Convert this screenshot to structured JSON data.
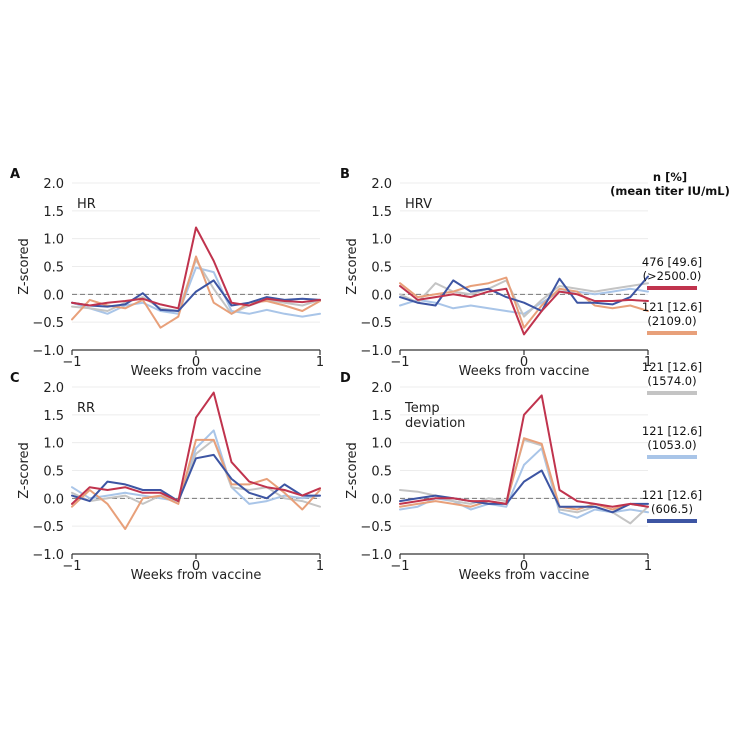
{
  "chart_data": [
    {
      "type": "line",
      "panel_letter": "A",
      "annotation": "HR",
      "xlabel": "Weeks from vaccine",
      "ylabel": "Z-scored",
      "xlim": [
        -1,
        1
      ],
      "ylim": [
        -1.0,
        2.0
      ],
      "xticks": [
        "−1",
        "0",
        "1"
      ],
      "yticks": [
        "2.0",
        "1.5",
        "1.0",
        "0.5",
        "0.0",
        "−0.5",
        "−1.0"
      ],
      "reference_line_y": 0,
      "x": [
        -1,
        -0.857,
        -0.714,
        -0.571,
        -0.429,
        -0.286,
        -0.143,
        0,
        0.143,
        0.286,
        0.429,
        0.571,
        0.714,
        0.857,
        1
      ],
      "series": [
        {
          "color": "#c0334d",
          "values": [
            -0.15,
            -0.2,
            -0.15,
            -0.12,
            -0.08,
            -0.18,
            -0.25,
            1.2,
            0.6,
            -0.15,
            -0.2,
            -0.08,
            -0.12,
            -0.14,
            -0.1
          ]
        },
        {
          "color": "#e8a07a",
          "values": [
            -0.45,
            -0.1,
            -0.2,
            -0.25,
            -0.1,
            -0.6,
            -0.4,
            0.68,
            -0.15,
            -0.35,
            -0.15,
            -0.12,
            -0.2,
            -0.3,
            -0.12
          ]
        },
        {
          "color": "#c4c4c4",
          "values": [
            -0.22,
            -0.25,
            -0.3,
            -0.15,
            -0.05,
            -0.25,
            -0.3,
            0.62,
            0.1,
            -0.35,
            -0.2,
            -0.1,
            -0.15,
            -0.2,
            -0.1
          ]
        },
        {
          "color": "#a9c5e8",
          "values": [
            -0.15,
            -0.25,
            -0.35,
            -0.2,
            -0.15,
            -0.3,
            -0.35,
            0.48,
            0.4,
            -0.3,
            -0.35,
            -0.28,
            -0.35,
            -0.4,
            -0.35
          ]
        },
        {
          "color": "#3d55a3",
          "values": [
            -0.15,
            -0.2,
            -0.22,
            -0.18,
            0.02,
            -0.28,
            -0.3,
            0.05,
            0.25,
            -0.2,
            -0.15,
            -0.05,
            -0.1,
            -0.08,
            -0.1
          ]
        }
      ]
    },
    {
      "type": "line",
      "panel_letter": "B",
      "annotation": "HRV",
      "xlabel": "Weeks from vaccine",
      "ylabel": "Z-scored",
      "xlim": [
        -1,
        1
      ],
      "ylim": [
        -1.0,
        2.0
      ],
      "xticks": [
        "−1",
        "0",
        "1"
      ],
      "yticks": [
        "2.0",
        "1.5",
        "1.0",
        "0.5",
        "0.0",
        "−0.5",
        "−1.0"
      ],
      "reference_line_y": 0,
      "x": [
        -1,
        -0.857,
        -0.714,
        -0.571,
        -0.429,
        -0.286,
        -0.143,
        0,
        0.143,
        0.286,
        0.429,
        0.571,
        0.714,
        0.857,
        1
      ],
      "series": [
        {
          "color": "#c0334d",
          "values": [
            0.15,
            -0.1,
            -0.05,
            0.0,
            -0.05,
            0.05,
            0.1,
            -0.72,
            -0.3,
            0.05,
            0.0,
            -0.12,
            -0.12,
            -0.1,
            -0.12
          ]
        },
        {
          "color": "#e8a07a",
          "values": [
            0.2,
            -0.05,
            0.0,
            0.05,
            0.15,
            0.2,
            0.3,
            -0.6,
            -0.2,
            0.1,
            0.05,
            -0.2,
            -0.25,
            -0.2,
            -0.3
          ]
        },
        {
          "color": "#c4c4c4",
          "values": [
            0.0,
            -0.15,
            0.2,
            0.05,
            0.0,
            0.1,
            0.25,
            -0.4,
            -0.1,
            0.15,
            0.1,
            0.05,
            0.1,
            0.15,
            0.2
          ]
        },
        {
          "color": "#a9c5e8",
          "values": [
            -0.2,
            -0.1,
            -0.15,
            -0.25,
            -0.2,
            -0.25,
            -0.3,
            -0.35,
            -0.15,
            0.05,
            0.05,
            0.0,
            0.05,
            0.1,
            0.05
          ]
        },
        {
          "color": "#3d55a3",
          "values": [
            -0.05,
            -0.15,
            -0.2,
            0.25,
            0.05,
            0.1,
            -0.05,
            -0.15,
            -0.3,
            0.28,
            -0.15,
            -0.15,
            -0.18,
            -0.05,
            0.32
          ]
        }
      ]
    },
    {
      "type": "line",
      "panel_letter": "C",
      "annotation": "RR",
      "xlabel": "Weeks from vaccine",
      "ylabel": "Z-scored",
      "xlim": [
        -1,
        1
      ],
      "ylim": [
        -1.0,
        2.0
      ],
      "xticks": [
        "−1",
        "0",
        "1"
      ],
      "yticks": [
        "2.0",
        "1.5",
        "1.0",
        "0.5",
        "0.0",
        "−0.5",
        "−1.0"
      ],
      "reference_line_y": 0,
      "x": [
        -1,
        -0.857,
        -0.714,
        -0.571,
        -0.429,
        -0.286,
        -0.143,
        0,
        0.143,
        0.286,
        0.429,
        0.571,
        0.714,
        0.857,
        1
      ],
      "series": [
        {
          "color": "#c0334d",
          "values": [
            -0.1,
            0.2,
            0.15,
            0.2,
            0.1,
            0.1,
            -0.05,
            1.45,
            1.9,
            0.65,
            0.3,
            0.2,
            0.15,
            0.05,
            0.18
          ]
        },
        {
          "color": "#e8a07a",
          "values": [
            -0.15,
            0.15,
            -0.1,
            -0.55,
            0.0,
            0.05,
            -0.1,
            1.05,
            1.05,
            0.25,
            0.25,
            0.35,
            0.1,
            -0.2,
            0.15
          ]
        },
        {
          "color": "#c4c4c4",
          "values": [
            0.1,
            -0.05,
            0.0,
            0.05,
            -0.1,
            0.05,
            -0.05,
            0.8,
            1.05,
            0.2,
            0.15,
            0.2,
            0.0,
            -0.05,
            -0.15
          ]
        },
        {
          "color": "#a9c5e8",
          "values": [
            0.2,
            0.0,
            0.05,
            0.1,
            0.05,
            0.0,
            -0.05,
            0.9,
            1.22,
            0.2,
            -0.1,
            -0.05,
            0.05,
            0.0,
            0.05
          ]
        },
        {
          "color": "#3d55a3",
          "values": [
            0.05,
            -0.05,
            0.3,
            0.25,
            0.15,
            0.15,
            -0.05,
            0.72,
            0.78,
            0.35,
            0.1,
            0.0,
            0.25,
            0.05,
            0.05
          ]
        }
      ]
    },
    {
      "type": "line",
      "panel_letter": "D",
      "annotation": "Temp deviation",
      "xlabel": "Weeks from vaccine",
      "ylabel": "Z-scored",
      "xlim": [
        -1,
        1
      ],
      "ylim": [
        -1.0,
        2.0
      ],
      "xticks": [
        "−1",
        "0",
        "1"
      ],
      "yticks": [
        "2.0",
        "1.5",
        "1.0",
        "0.5",
        "0.0",
        "−0.5",
        "−1.0"
      ],
      "reference_line_y": 0,
      "x": [
        -1,
        -0.857,
        -0.714,
        -0.571,
        -0.429,
        -0.286,
        -0.143,
        0,
        0.143,
        0.286,
        0.429,
        0.571,
        0.714,
        0.857,
        1
      ],
      "series": [
        {
          "color": "#c0334d",
          "values": [
            -0.1,
            -0.05,
            0.0,
            0.0,
            -0.05,
            -0.05,
            -0.1,
            1.5,
            1.85,
            0.15,
            -0.05,
            -0.1,
            -0.15,
            -0.1,
            -0.15
          ]
        },
        {
          "color": "#e8a07a",
          "values": [
            -0.15,
            -0.1,
            -0.05,
            -0.1,
            -0.15,
            -0.05,
            -0.1,
            1.08,
            0.98,
            -0.15,
            -0.2,
            -0.1,
            -0.2,
            -0.1,
            -0.15
          ]
        },
        {
          "color": "#c4c4c4",
          "values": [
            0.15,
            0.12,
            0.05,
            -0.05,
            -0.1,
            0.0,
            -0.05,
            1.05,
            0.95,
            -0.2,
            -0.25,
            -0.15,
            -0.25,
            -0.45,
            -0.15
          ]
        },
        {
          "color": "#a9c5e8",
          "values": [
            -0.2,
            -0.15,
            0.0,
            -0.05,
            -0.2,
            -0.1,
            -0.15,
            0.6,
            0.9,
            -0.25,
            -0.35,
            -0.2,
            -0.25,
            -0.2,
            -0.25
          ]
        },
        {
          "color": "#3d55a3",
          "values": [
            -0.05,
            0.0,
            0.05,
            0.0,
            -0.05,
            -0.1,
            -0.1,
            0.3,
            0.5,
            -0.15,
            -0.15,
            -0.15,
            -0.25,
            -0.1,
            -0.1
          ]
        }
      ]
    }
  ],
  "legend": {
    "header_line1": "n [%]",
    "header_line2": "(mean titer IU/mL)",
    "entries": [
      {
        "line1": "476 [49.6]",
        "line2": "(>2500.0)",
        "color": "#c0334d"
      },
      {
        "line1": "121 [12.6]",
        "line2": "(2109.0)",
        "color": "#e8a07a"
      },
      {
        "line1": "121 [12.6]",
        "line2": "(1574.0)",
        "color": "#c4c4c4"
      },
      {
        "line1": "121 [12.6]",
        "line2": "(1053.0)",
        "color": "#a9c5e8"
      },
      {
        "line1": "121 [12.6]",
        "line2": "(606.5)",
        "color": "#3d55a3"
      }
    ]
  }
}
